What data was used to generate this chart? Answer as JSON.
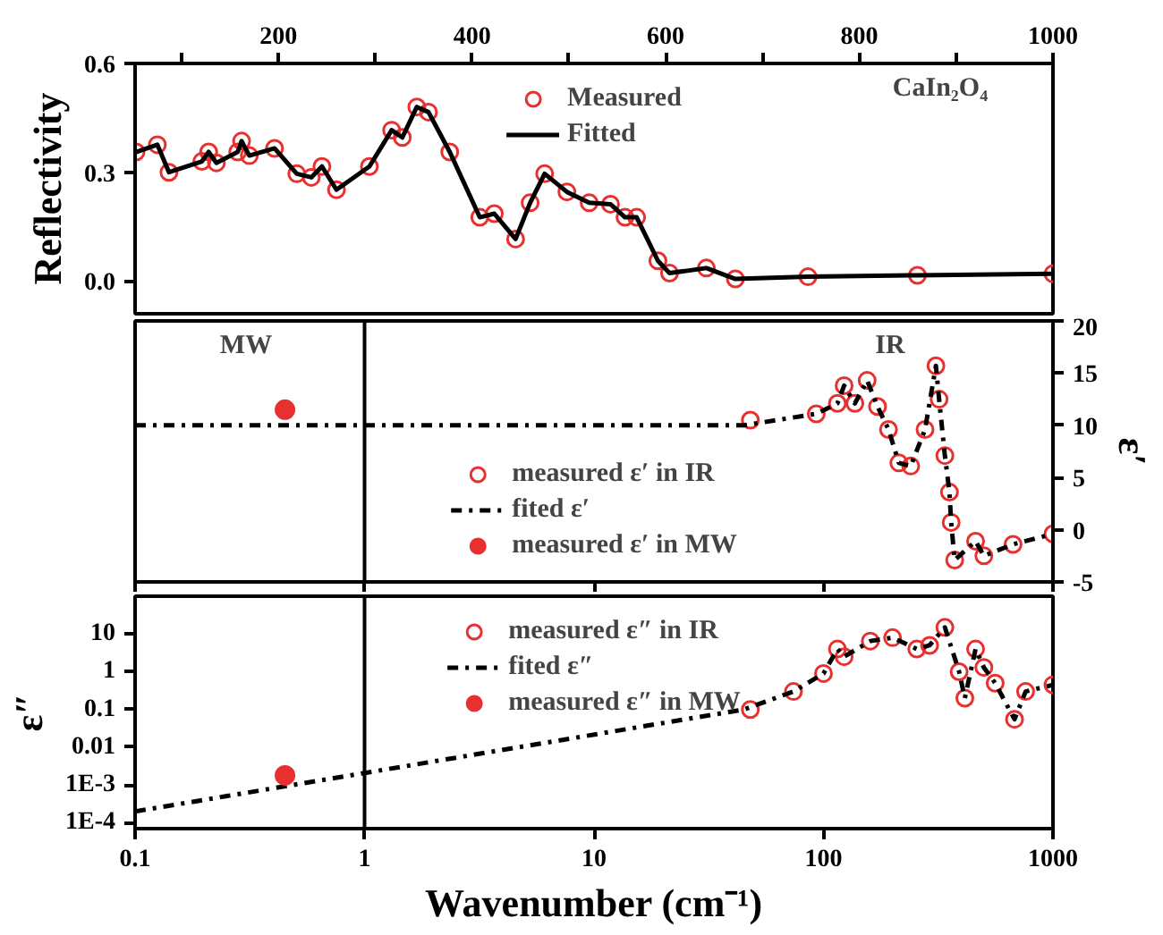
{
  "chart_data": [
    {
      "type": "line",
      "ylabel": "Reflectivity",
      "x": [
        53,
        75,
        87,
        121,
        128,
        136,
        158,
        162,
        170,
        196,
        219,
        234,
        245,
        260,
        294,
        317,
        328,
        343,
        355,
        377,
        408,
        423,
        445,
        460,
        475,
        498,
        521,
        543,
        558,
        570,
        592,
        604,
        642,
        672,
        747,
        860,
        1000
      ],
      "series": [
        {
          "name": "Measured",
          "type": "scatter",
          "marker": "circle_open",
          "color": "#e8302f",
          "values": [
            0.356,
            0.376,
            0.3,
            0.33,
            0.356,
            0.326,
            0.356,
            0.386,
            0.346,
            0.366,
            0.296,
            0.286,
            0.316,
            0.252,
            0.316,
            0.416,
            0.396,
            0.48,
            0.466,
            0.356,
            0.176,
            0.186,
            0.116,
            0.216,
            0.296,
            0.246,
            0.216,
            0.212,
            0.176,
            0.176,
            0.056,
            0.022,
            0.036,
            0.006,
            0.012,
            0.016,
            0.02
          ]
        },
        {
          "name": "Fitted",
          "type": "line",
          "color": "#000000",
          "line_style": "solid",
          "values": [
            0.356,
            0.376,
            0.3,
            0.33,
            0.356,
            0.326,
            0.356,
            0.386,
            0.346,
            0.366,
            0.296,
            0.286,
            0.316,
            0.252,
            0.316,
            0.416,
            0.396,
            0.48,
            0.466,
            0.356,
            0.176,
            0.186,
            0.116,
            0.216,
            0.296,
            0.246,
            0.216,
            0.212,
            0.176,
            0.176,
            0.056,
            0.022,
            0.036,
            0.006,
            0.012,
            0.016,
            0.02
          ]
        }
      ],
      "xlim": [
        52,
        1000
      ],
      "xticks": [
        {
          "value": 100,
          "label": null
        },
        200,
        {
          "value": 300,
          "label": null
        },
        400,
        {
          "value": 500,
          "label": null
        },
        600,
        {
          "value": 700,
          "label": null
        },
        800,
        {
          "value": 900,
          "label": null
        },
        1000
      ],
      "ylim": [
        -0.09,
        0.6
      ],
      "yticks": [
        {
          "value": 0,
          "label": "0.0"
        },
        {
          "value": 0.3,
          "label": "0.3"
        },
        {
          "value": 0.6,
          "label": "0.6"
        }
      ],
      "annotations": [
        "CaIn₂O₄"
      ],
      "legend": "top",
      "grid": false
    },
    {
      "type": "line",
      "y2label": "ε′",
      "log": "x",
      "series": [
        {
          "name": "measured ε′ in IR",
          "type": "scatter",
          "marker": "circle_open",
          "color": "#e8302f",
          "axis": "y2",
          "x": [
            48,
            93,
            115,
            123,
            137,
            155,
            172,
            192,
            213,
            240,
            277,
            309,
            319,
            338,
            354,
            360,
            373,
            460,
            500,
            670,
            1000
          ],
          "values": [
            10.5,
            11.1,
            12.1,
            13.8,
            12.1,
            14.3,
            11.8,
            9.6,
            6.4,
            6.1,
            9.6,
            15.7,
            12.5,
            7.1,
            3.6,
            0.7,
            -2.9,
            -1.1,
            -2.5,
            -1.4,
            -0.4
          ]
        },
        {
          "name": "fited ε′",
          "type": "line",
          "color": "#000000",
          "line_style": "dashdot",
          "axis": "y2",
          "x": [
            0.1,
            45,
            93,
            115,
            123,
            137,
            155,
            172,
            192,
            213,
            240,
            277,
            309,
            319,
            338,
            354,
            360,
            373,
            460,
            500,
            670,
            1000
          ],
          "values": [
            10,
            10,
            11.1,
            12.1,
            13.8,
            12.1,
            14.3,
            11.8,
            9.6,
            6.4,
            6.1,
            9.6,
            15.7,
            12.5,
            7.1,
            3.6,
            0.7,
            -2.9,
            -1.1,
            -2.5,
            -1.4,
            -0.4
          ]
        },
        {
          "name": "measured ε′ in MW",
          "type": "scatter",
          "marker": "circle",
          "color": "#e8302f",
          "axis": "y2",
          "x": [
            0.45
          ],
          "values": [
            11.5
          ]
        }
      ],
      "xlim": [
        0.1,
        1000
      ],
      "xticks": [
        0.1,
        1,
        10,
        100,
        1000
      ],
      "y2lim": [
        -5,
        20
      ],
      "y2ticks": [
        -5,
        0,
        5,
        10,
        15,
        20
      ],
      "tick_labels": "y",
      "ref_lines": [
        {
          "axis": "x",
          "value": 1,
          "color": "#000000"
        }
      ],
      "annotations": [
        "MW",
        "IR"
      ],
      "legend": "bottom",
      "grid": false
    },
    {
      "type": "line",
      "ylabel": "ε″",
      "xlabel": "Wavenumber (cm⁻¹)",
      "log": "xy",
      "series": [
        {
          "name": "measured ε″ in IR",
          "type": "scatter",
          "marker": "circle_open",
          "color": "#e8302f",
          "x": [
            48,
            74,
            100,
            115,
            123,
            160,
            200,
            255,
            290,
            338,
            390,
            413,
            460,
            500,
            560,
            680,
            760,
            1000
          ],
          "values": [
            0.1,
            0.3,
            0.9,
            4,
            2.5,
            6.5,
            8,
            4,
            5,
            15,
            1,
            0.2,
            4,
            1.3,
            0.5,
            0.055,
            0.3,
            0.45
          ]
        },
        {
          "name": "fited ε″",
          "type": "line",
          "color": "#000000",
          "line_style": "dashdot",
          "x": [
            0.1,
            45,
            74,
            100,
            115,
            123,
            160,
            200,
            255,
            290,
            338,
            390,
            413,
            460,
            500,
            560,
            680,
            760,
            1000
          ],
          "values": [
            0.0002,
            0.1,
            0.3,
            0.9,
            4,
            2.5,
            6.5,
            8,
            4,
            5,
            15,
            1,
            0.2,
            4,
            1.3,
            0.5,
            0.055,
            0.3,
            0.45
          ]
        },
        {
          "name": "measured ε″ in MW",
          "type": "scatter",
          "marker": "circle",
          "color": "#e8302f",
          "x": [
            0.45
          ],
          "values": [
            0.0018
          ]
        }
      ],
      "xlim": [
        0.1,
        1000
      ],
      "xticks": [
        0.1,
        1,
        10,
        100,
        1000
      ],
      "ylim": [
        7e-05,
        100
      ],
      "yticks": [
        {
          "value": 0.0001,
          "label": "1E-4"
        },
        {
          "value": 0.001,
          "label": "1E-3"
        },
        0.01,
        0.1,
        1,
        10
      ],
      "ref_lines": [
        {
          "axis": "x",
          "value": 1,
          "color": "#000000"
        }
      ],
      "legend": "top",
      "grid": false
    }
  ]
}
